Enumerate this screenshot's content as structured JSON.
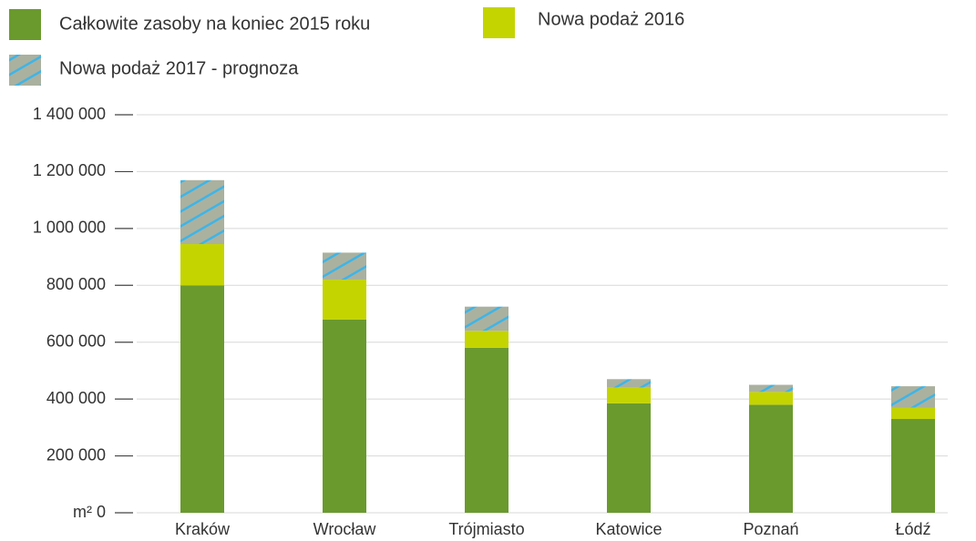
{
  "chart_data": {
    "type": "stacked_bar",
    "categories": [
      "Kraków",
      "Wrocław",
      "Trójmiasto",
      "Katowice",
      "Poznań",
      "Łódź"
    ],
    "series": [
      {
        "name": "Całkowite zasoby na koniec 2015 roku",
        "color": "#6a9a2e",
        "values": [
          800000,
          680000,
          580000,
          385000,
          380000,
          330000
        ]
      },
      {
        "name": "Nowa podaż 2016",
        "color": "#c4d400",
        "values": [
          145000,
          140000,
          60000,
          55000,
          45000,
          40000
        ]
      },
      {
        "name": "Nowa podaż 2017 - prognoza",
        "color": "#aab19f",
        "hatch": "#3db5e8",
        "values": [
          225000,
          95000,
          85000,
          30000,
          25000,
          75000
        ]
      }
    ],
    "ylim": [
      0,
      1400000
    ],
    "yticks": [
      {
        "value": 0,
        "label": "m² 0"
      },
      {
        "value": 200000,
        "label": "200 000"
      },
      {
        "value": 400000,
        "label": "400 000"
      },
      {
        "value": 600000,
        "label": "600 000"
      },
      {
        "value": 800000,
        "label": "800 000"
      },
      {
        "value": 1000000,
        "label": "1 000 000"
      },
      {
        "value": 1200000,
        "label": "1 200 000"
      },
      {
        "value": 1400000,
        "label": "1 400 000"
      }
    ],
    "grid": true
  }
}
